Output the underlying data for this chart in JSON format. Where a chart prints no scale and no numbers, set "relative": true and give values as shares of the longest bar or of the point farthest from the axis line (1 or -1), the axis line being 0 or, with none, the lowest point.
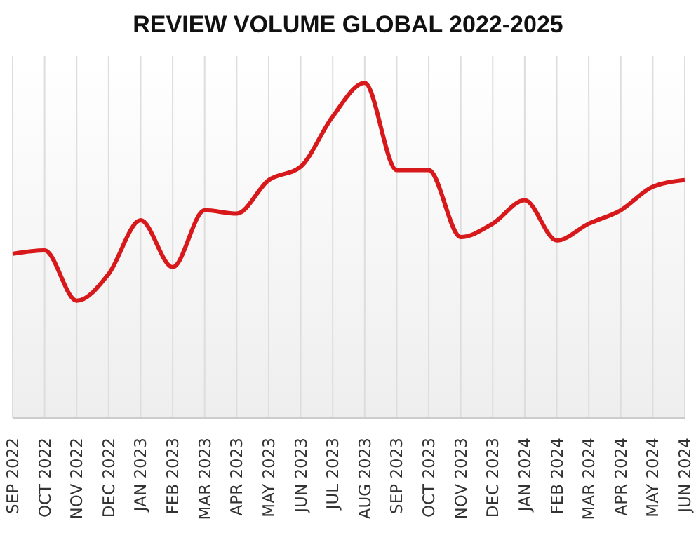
{
  "chart_data": {
    "type": "line",
    "title": "REVIEW VOLUME GLOBAL 2022-2025",
    "relative": true,
    "grid": "x",
    "legend": false,
    "marker": "none",
    "line_style": "solid",
    "categories": [
      "SEP 2022",
      "OCT 2022",
      "NOV 2022",
      "DEC 2022",
      "JAN 2023",
      "FEB 2023",
      "MAR 2023",
      "APR 2023",
      "MAY 2023",
      "JUN 2023",
      "JUL 2023",
      "AUG 2023",
      "SEP 2023",
      "OCT 2023",
      "NOV 2023",
      "DEC 2023",
      "JAN 2024",
      "FEB 2024",
      "MAR 2024",
      "APR 2024",
      "MAY 2024",
      "JUN 2024"
    ],
    "series": [
      {
        "color": "#d7191c",
        "values": [
          0.49,
          0.5,
          0.35,
          0.43,
          0.59,
          0.45,
          0.62,
          0.61,
          0.71,
          0.75,
          0.9,
          1,
          0.74,
          0.74,
          0.54,
          0.58,
          0.65,
          0.53,
          0.58,
          0.62,
          0.69,
          0.71
        ]
      }
    ]
  }
}
